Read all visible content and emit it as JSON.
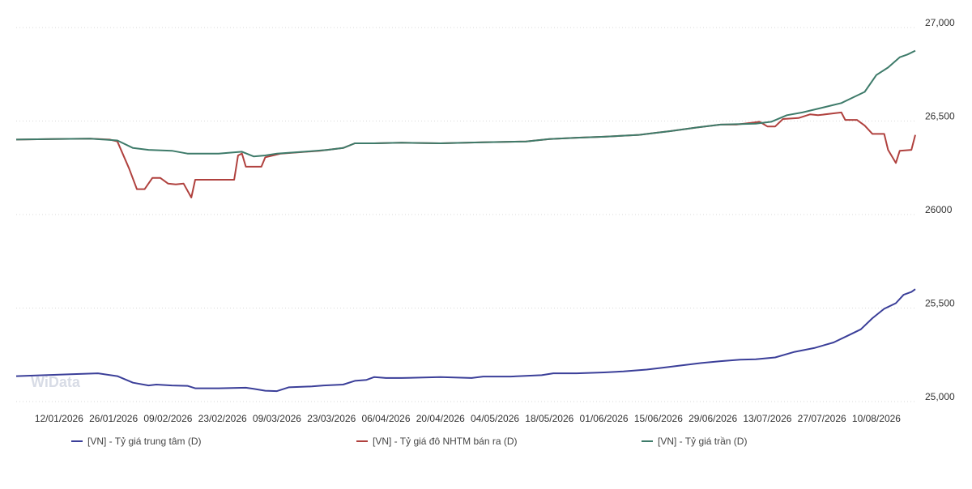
{
  "watermark": "WiData",
  "chart_data": {
    "type": "line",
    "ylim": [
      25000,
      27000
    ],
    "yticks": [
      25000,
      25500,
      26000,
      26500,
      27000
    ],
    "ytick_labels": [
      "25,000",
      "25,500",
      "26000",
      "26,500",
      "27,000"
    ],
    "grid": true,
    "legend_position": "bottom",
    "xlim": [
      "2026-01-01",
      "2026-08-20"
    ],
    "xticks": [
      "2026-01-12",
      "2026-01-26",
      "2026-02-09",
      "2026-02-23",
      "2026-03-09",
      "2026-03-23",
      "2026-04-06",
      "2026-04-20",
      "2026-05-04",
      "2026-05-18",
      "2026-06-01",
      "2026-06-15",
      "2026-06-29",
      "2026-07-13",
      "2026-07-27",
      "2026-08-10"
    ],
    "xtick_labels": [
      "12/01/2026",
      "26/01/2026",
      "09/02/2026",
      "23/02/2026",
      "09/03/2026",
      "23/03/2026",
      "06/04/2026",
      "20/04/2026",
      "04/05/2026",
      "18/05/2026",
      "01/06/2026",
      "15/06/2026",
      "29/06/2026",
      "13/07/2026",
      "27/07/2026",
      "10/08/2026"
    ],
    "series": [
      {
        "name": "[VN] - Tỷ giá trung tâm (D)",
        "color": "#3b3f99",
        "points": [
          [
            "2026-01-01",
            25110
          ],
          [
            "2026-01-15",
            25120
          ],
          [
            "2026-01-22",
            25125
          ],
          [
            "2026-01-27",
            25110
          ],
          [
            "2026-01-31",
            25075
          ],
          [
            "2026-02-04",
            25060
          ],
          [
            "2026-02-06",
            25065
          ],
          [
            "2026-02-10",
            25060
          ],
          [
            "2026-02-14",
            25058
          ],
          [
            "2026-02-16",
            25045
          ],
          [
            "2026-02-22",
            25045
          ],
          [
            "2026-03-01",
            25048
          ],
          [
            "2026-03-03",
            25042
          ],
          [
            "2026-03-06",
            25032
          ],
          [
            "2026-03-09",
            25030
          ],
          [
            "2026-03-12",
            25050
          ],
          [
            "2026-03-18",
            25055
          ],
          [
            "2026-03-21",
            25060
          ],
          [
            "2026-03-26",
            25065
          ],
          [
            "2026-03-29",
            25085
          ],
          [
            "2026-04-01",
            25090
          ],
          [
            "2026-04-03",
            25105
          ],
          [
            "2026-04-06",
            25100
          ],
          [
            "2026-04-10",
            25100
          ],
          [
            "2026-04-20",
            25105
          ],
          [
            "2026-04-28",
            25100
          ],
          [
            "2026-05-01",
            25108
          ],
          [
            "2026-05-08",
            25108
          ],
          [
            "2026-05-16",
            25115
          ],
          [
            "2026-05-19",
            25125
          ],
          [
            "2026-05-25",
            25125
          ],
          [
            "2026-06-01",
            25130
          ],
          [
            "2026-06-06",
            25135
          ],
          [
            "2026-06-12",
            25145
          ],
          [
            "2026-06-16",
            25155
          ],
          [
            "2026-06-20",
            25165
          ],
          [
            "2026-06-26",
            25180
          ],
          [
            "2026-07-01",
            25190
          ],
          [
            "2026-07-06",
            25198
          ],
          [
            "2026-07-10",
            25200
          ],
          [
            "2026-07-15",
            25210
          ],
          [
            "2026-07-20",
            25240
          ],
          [
            "2026-07-25",
            25260
          ],
          [
            "2026-07-30",
            25290
          ],
          [
            "2026-08-03",
            25330
          ],
          [
            "2026-08-06",
            25360
          ],
          [
            "2026-08-09",
            25420
          ],
          [
            "2026-08-12",
            25470
          ],
          [
            "2026-08-15",
            25500
          ],
          [
            "2026-08-17",
            25545
          ],
          [
            "2026-08-19",
            25560
          ],
          [
            "2026-08-20",
            25575
          ]
        ]
      },
      {
        "name": "[VN] - Tỷ giá đô NHTM bán ra (D)",
        "color": "#b0413e",
        "points": [
          [
            "2026-01-01",
            26375
          ],
          [
            "2026-01-10",
            26378
          ],
          [
            "2026-01-20",
            26380
          ],
          [
            "2026-01-25",
            26375
          ],
          [
            "2026-01-27",
            26365
          ],
          [
            "2026-01-30",
            26220
          ],
          [
            "2026-02-01",
            26110
          ],
          [
            "2026-02-03",
            26110
          ],
          [
            "2026-02-05",
            26170
          ],
          [
            "2026-02-07",
            26170
          ],
          [
            "2026-02-09",
            26140
          ],
          [
            "2026-02-11",
            26135
          ],
          [
            "2026-02-13",
            26140
          ],
          [
            "2026-02-15",
            26065
          ],
          [
            "2026-02-16",
            26160
          ],
          [
            "2026-02-22",
            26160
          ],
          [
            "2026-02-26",
            26160
          ],
          [
            "2026-02-27",
            26290
          ],
          [
            "2026-02-28",
            26300
          ],
          [
            "2026-03-01",
            26230
          ],
          [
            "2026-03-03",
            26230
          ],
          [
            "2026-03-05",
            26230
          ],
          [
            "2026-03-06",
            26280
          ],
          [
            "2026-03-10",
            26300
          ],
          [
            "2026-03-20",
            26315
          ],
          [
            "2026-03-26",
            26330
          ],
          [
            "2026-03-29",
            26355
          ],
          [
            "2026-04-03",
            26355
          ],
          [
            "2026-04-10",
            26358
          ],
          [
            "2026-04-20",
            26355
          ],
          [
            "2026-05-01",
            26360
          ],
          [
            "2026-05-12",
            26365
          ],
          [
            "2026-05-18",
            26378
          ],
          [
            "2026-05-25",
            26385
          ],
          [
            "2026-06-01",
            26390
          ],
          [
            "2026-06-10",
            26400
          ],
          [
            "2026-06-14",
            26410
          ],
          [
            "2026-06-18",
            26420
          ],
          [
            "2026-06-25",
            26440
          ],
          [
            "2026-07-01",
            26455
          ],
          [
            "2026-07-05",
            26455
          ],
          [
            "2026-07-09",
            26465
          ],
          [
            "2026-07-11",
            26470
          ],
          [
            "2026-07-13",
            26445
          ],
          [
            "2026-07-15",
            26445
          ],
          [
            "2026-07-17",
            26485
          ],
          [
            "2026-07-21",
            26490
          ],
          [
            "2026-07-24",
            26510
          ],
          [
            "2026-07-26",
            26505
          ],
          [
            "2026-07-30",
            26515
          ],
          [
            "2026-08-01",
            26520
          ],
          [
            "2026-08-02",
            26480
          ],
          [
            "2026-08-05",
            26480
          ],
          [
            "2026-08-07",
            26450
          ],
          [
            "2026-08-09",
            26405
          ],
          [
            "2026-08-12",
            26405
          ],
          [
            "2026-08-13",
            26320
          ],
          [
            "2026-08-15",
            26250
          ],
          [
            "2026-08-16",
            26315
          ],
          [
            "2026-08-19",
            26320
          ],
          [
            "2026-08-20",
            26400
          ]
        ]
      },
      {
        "name": "[VN] - Tỷ giá trần (D)",
        "color": "#3e7b6a",
        "points": [
          [
            "2026-01-01",
            26375
          ],
          [
            "2026-01-10",
            26378
          ],
          [
            "2026-01-20",
            26380
          ],
          [
            "2026-01-27",
            26370
          ],
          [
            "2026-01-31",
            26330
          ],
          [
            "2026-02-04",
            26320
          ],
          [
            "2026-02-10",
            26315
          ],
          [
            "2026-02-14",
            26300
          ],
          [
            "2026-02-22",
            26300
          ],
          [
            "2026-02-28",
            26310
          ],
          [
            "2026-03-03",
            26285
          ],
          [
            "2026-03-06",
            26290
          ],
          [
            "2026-03-09",
            26300
          ],
          [
            "2026-03-16",
            26310
          ],
          [
            "2026-03-22",
            26320
          ],
          [
            "2026-03-26",
            26330
          ],
          [
            "2026-03-29",
            26355
          ],
          [
            "2026-04-03",
            26355
          ],
          [
            "2026-04-10",
            26358
          ],
          [
            "2026-04-20",
            26355
          ],
          [
            "2026-05-01",
            26360
          ],
          [
            "2026-05-12",
            26365
          ],
          [
            "2026-05-18",
            26378
          ],
          [
            "2026-05-25",
            26385
          ],
          [
            "2026-06-01",
            26390
          ],
          [
            "2026-06-10",
            26400
          ],
          [
            "2026-06-14",
            26410
          ],
          [
            "2026-06-18",
            26420
          ],
          [
            "2026-06-25",
            26440
          ],
          [
            "2026-07-01",
            26455
          ],
          [
            "2026-07-10",
            26460
          ],
          [
            "2026-07-14",
            26470
          ],
          [
            "2026-07-18",
            26505
          ],
          [
            "2026-07-22",
            26520
          ],
          [
            "2026-07-27",
            26545
          ],
          [
            "2026-08-01",
            26570
          ],
          [
            "2026-08-04",
            26600
          ],
          [
            "2026-08-07",
            26630
          ],
          [
            "2026-08-10",
            26720
          ],
          [
            "2026-08-13",
            26760
          ],
          [
            "2026-08-16",
            26815
          ],
          [
            "2026-08-18",
            26830
          ],
          [
            "2026-08-20",
            26850
          ]
        ]
      }
    ]
  }
}
